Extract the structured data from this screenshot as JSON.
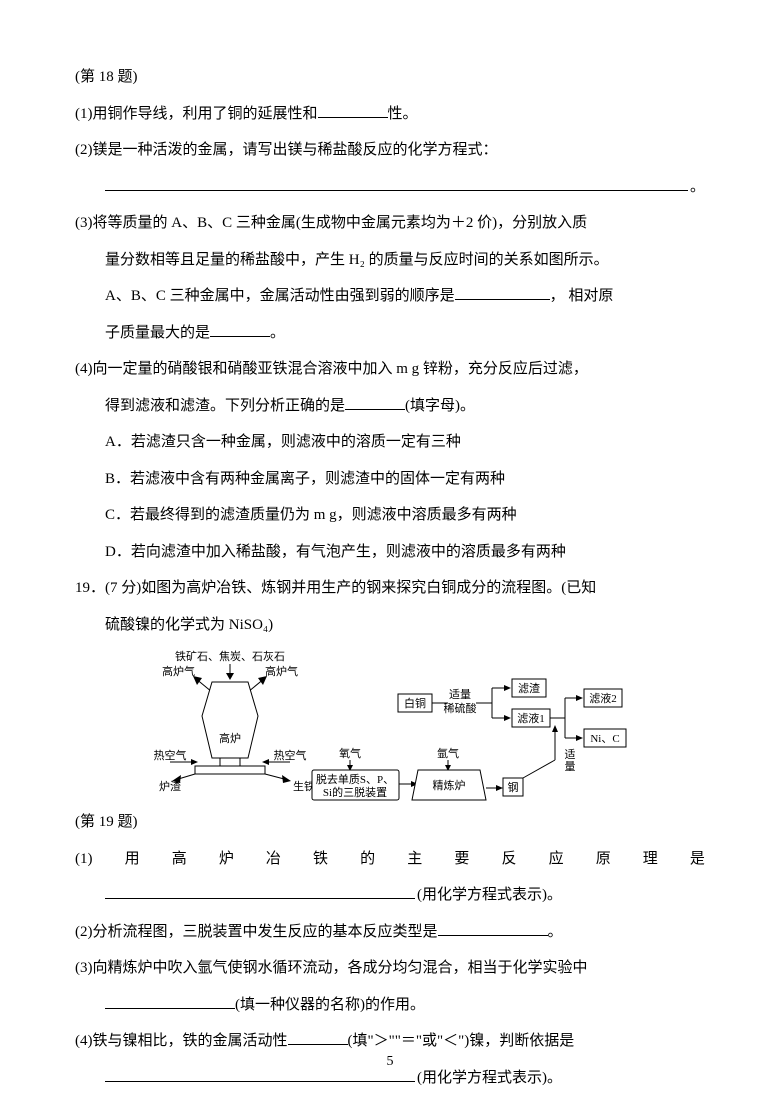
{
  "fig18_caption": "(第 18 题)",
  "q18_1": "(1)用铜作导线，利用了铜的延展性和",
  "q18_1_tail": "性。",
  "q18_2": "(2)镁是一种活泼的金属，请写出镁与稀盐酸反应的化学方程式：",
  "q18_2_tail": "。",
  "q18_3a": "(3)将等质量的 A、B、C 三种金属(生成物中金属元素均为＋2 价)，分别放入质",
  "q18_3b": "量分数相等且足量的稀盐酸中，产生 H₂ 的质量与反应时间的关系如图所示。",
  "q18_3c_a": "A、B、C 三种金属中，金属活动性由强到弱的顺序是",
  "q18_3c_b": "， 相对原",
  "q18_3d_a": "子质量最大的是",
  "q18_3d_b": "。",
  "q18_4a": "(4)向一定量的硝酸银和硝酸亚铁混合溶液中加入 m g 锌粉，充分反应后过滤，",
  "q18_4b_a": "得到滤液和滤渣。下列分析正确的是",
  "q18_4b_b": "(填字母)。",
  "q18_A": "A．若滤渣只含一种金属，则滤液中的溶质一定有三种",
  "q18_B": "B．若滤液中含有两种金属离子，则滤渣中的固体一定有两种",
  "q18_C": "C．若最终得到的滤渣质量仍为 m g，则滤液中溶质最多有两种",
  "q18_D": "D．若向滤渣中加入稀盐酸，有气泡产生，则滤液中的溶质最多有两种",
  "q19_stem_a": "19．(7 分)如图为高炉冶铁、炼钢并用生产的钢来探究白铜成分的流程图。(已知",
  "q19_stem_b": "硫酸镍的化学式为 NiSO₄)",
  "fig19_caption": "(第 19 题)",
  "q19_1_chars": [
    "(1)",
    "用",
    "高",
    "炉",
    "冶",
    "铁",
    "的",
    "主",
    "要",
    "反",
    "应",
    "原",
    "理",
    "是"
  ],
  "q19_1_tail": "(用化学方程式表示)。",
  "q19_2_a": "(2)分析流程图，三脱装置中发生反应的基本反应类型是",
  "q19_2_b": "。",
  "q19_3a": "(3)向精炼炉中吹入氩气使钢水循环流动，各成分均匀混合，相当于化学实验中",
  "q19_3b_b": "(填一种仪器的名称)的作用。",
  "q19_4a_a": "(4)铁与镍相比，铁的金属活动性",
  "q19_4a_b": "(填\"＞\"\"＝\"或\"＜\")镍，判断依据是",
  "q19_4b_b": "(用化学方程式表示)。",
  "page_number": "5",
  "diagram": {
    "labels": {
      "top": "铁矿石、焦炭、石灰石",
      "gas_l": "高炉气",
      "gas_r": "高炉气",
      "furnace": "高炉",
      "hot_l": "热空气",
      "hot_r": "热空气",
      "slag": "炉渣",
      "iron": "生铁",
      "oxygen": "氧气",
      "desulf1": "脱去单质S、P、",
      "desulf2": "Si的三脱装置",
      "argon": "氩气",
      "refine": "精炼炉",
      "steel": "钢",
      "baitong": "白铜",
      "shiliang": "适量",
      "acid": "稀硫酸",
      "residue": "滤渣",
      "filtrate1": "滤液1",
      "filtrate2": "滤液2",
      "nic": "Ni、C",
      "shiliang2": "适",
      "shiliang2b": "量"
    },
    "colors": {
      "stroke": "#000000",
      "bg": "#ffffff"
    }
  }
}
